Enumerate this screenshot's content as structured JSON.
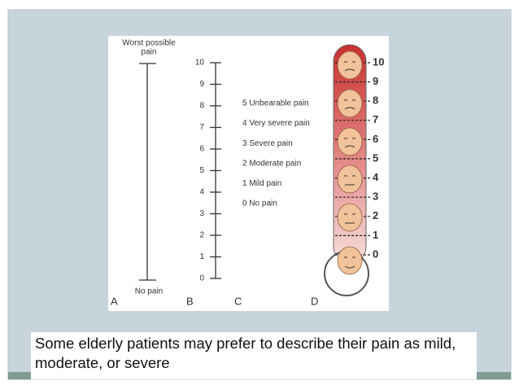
{
  "panel_a": {
    "letter": "A",
    "top_label": [
      "Worst possible",
      "pain"
    ],
    "bottom_label": "No pain"
  },
  "panel_b": {
    "letter": "B",
    "scale": [
      0,
      1,
      2,
      3,
      4,
      5,
      6,
      7,
      8,
      9,
      10
    ]
  },
  "panel_c": {
    "letter": "C",
    "items": [
      "0 No pain",
      "1 Mild pain",
      "2 Moderate pain",
      "3 Severe pain",
      "4 Very severe pain",
      "5 Unbearable pain"
    ]
  },
  "panel_d": {
    "letter": "D",
    "scale": [
      0,
      1,
      2,
      3,
      4,
      5,
      6,
      7,
      8,
      9,
      10
    ]
  },
  "caption": "Some elderly patients may prefer to describe their pain as mild, moderate, or severe"
}
